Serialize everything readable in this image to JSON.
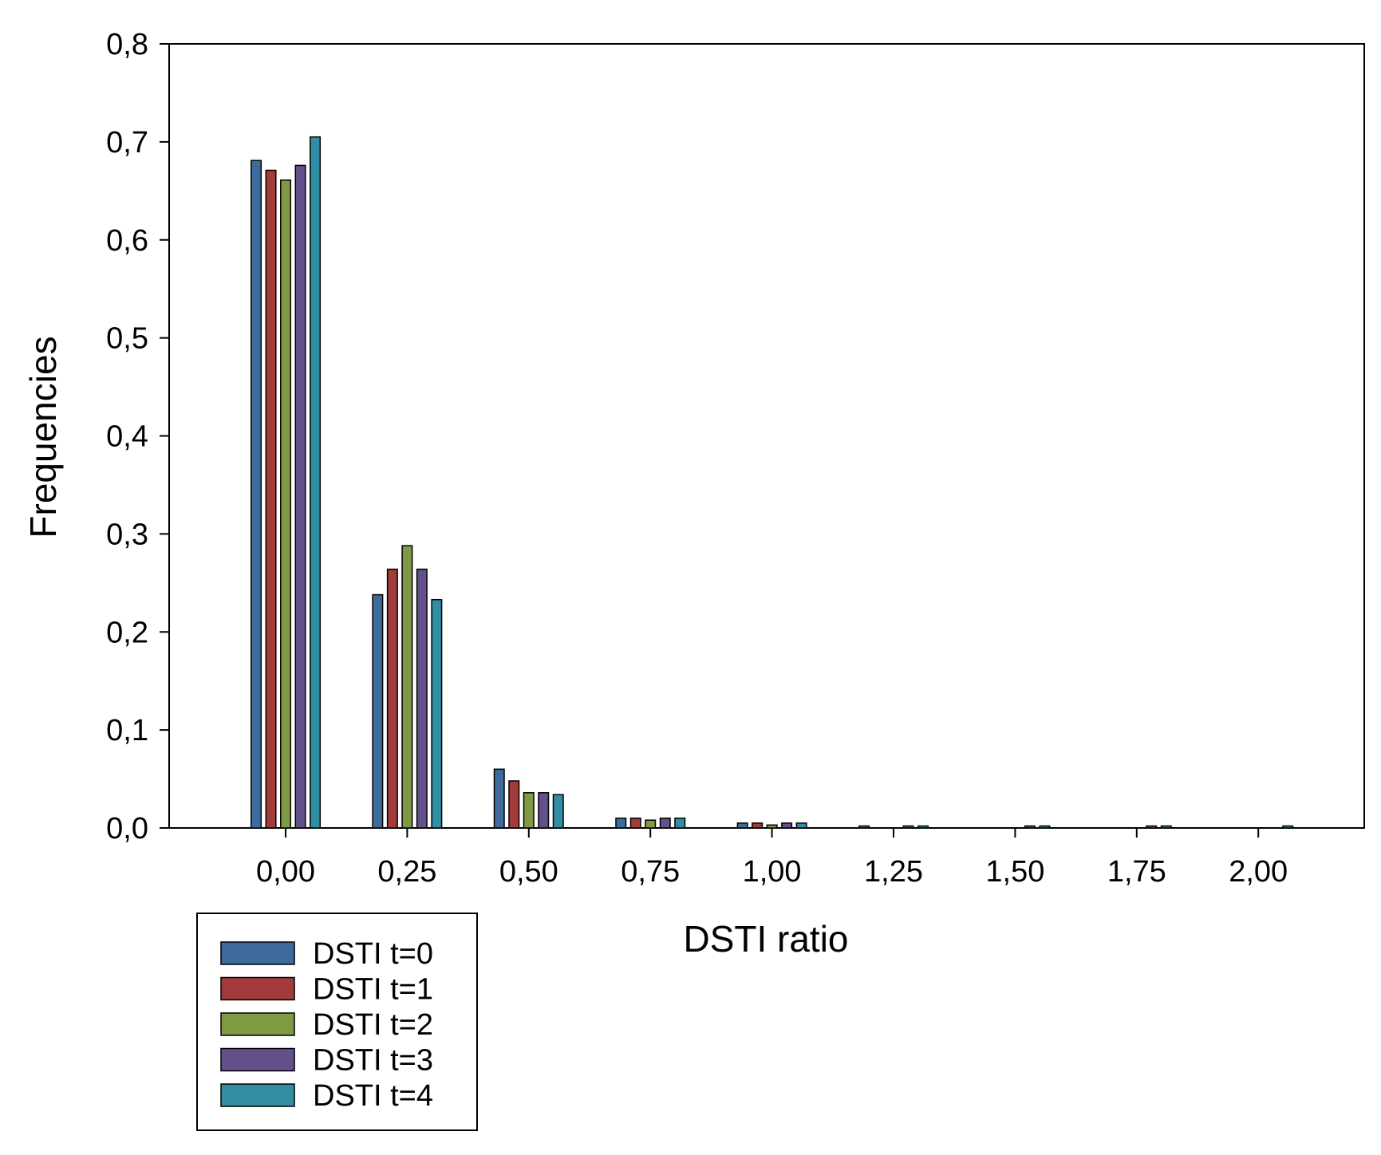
{
  "chart_data": {
    "type": "bar",
    "title": "",
    "xlabel": "DSTI ratio",
    "ylabel": "Frequencies",
    "categories": [
      "0,00",
      "0,25",
      "0,50",
      "0,75",
      "1,00",
      "1,25",
      "1,50",
      "1,75",
      "2,00"
    ],
    "x_tick_labels": [
      "0,00",
      "0,25",
      "0,50",
      "0,75",
      "1,00",
      "1,25",
      "1,50",
      "1,75",
      "2,00"
    ],
    "y_tick_labels": [
      "0,0",
      "0,1",
      "0,2",
      "0,3",
      "0,4",
      "0,5",
      "0,6",
      "0,7",
      "0,8"
    ],
    "ylim": [
      0,
      0.8
    ],
    "grid": false,
    "legend_position": "bottom-left",
    "series": [
      {
        "name": "DSTI t=0",
        "color": "#3d6b9e",
        "values": [
          0.681,
          0.238,
          0.06,
          0.01,
          0.005,
          0.002,
          0.0,
          0.0,
          0.0
        ]
      },
      {
        "name": "DSTI t=1",
        "color": "#a33b3a",
        "values": [
          0.671,
          0.264,
          0.048,
          0.01,
          0.005,
          0.0,
          0.0,
          0.0,
          0.0
        ]
      },
      {
        "name": "DSTI t=2",
        "color": "#7f9a43",
        "values": [
          0.661,
          0.288,
          0.036,
          0.008,
          0.003,
          0.0,
          0.0,
          0.0,
          0.0
        ]
      },
      {
        "name": "DSTI t=3",
        "color": "#64508a",
        "values": [
          0.676,
          0.264,
          0.036,
          0.01,
          0.005,
          0.002,
          0.002,
          0.002,
          0.0
        ]
      },
      {
        "name": "DSTI t=4",
        "color": "#328ea3",
        "values": [
          0.705,
          0.233,
          0.034,
          0.01,
          0.005,
          0.002,
          0.002,
          0.002,
          0.002
        ]
      }
    ]
  }
}
